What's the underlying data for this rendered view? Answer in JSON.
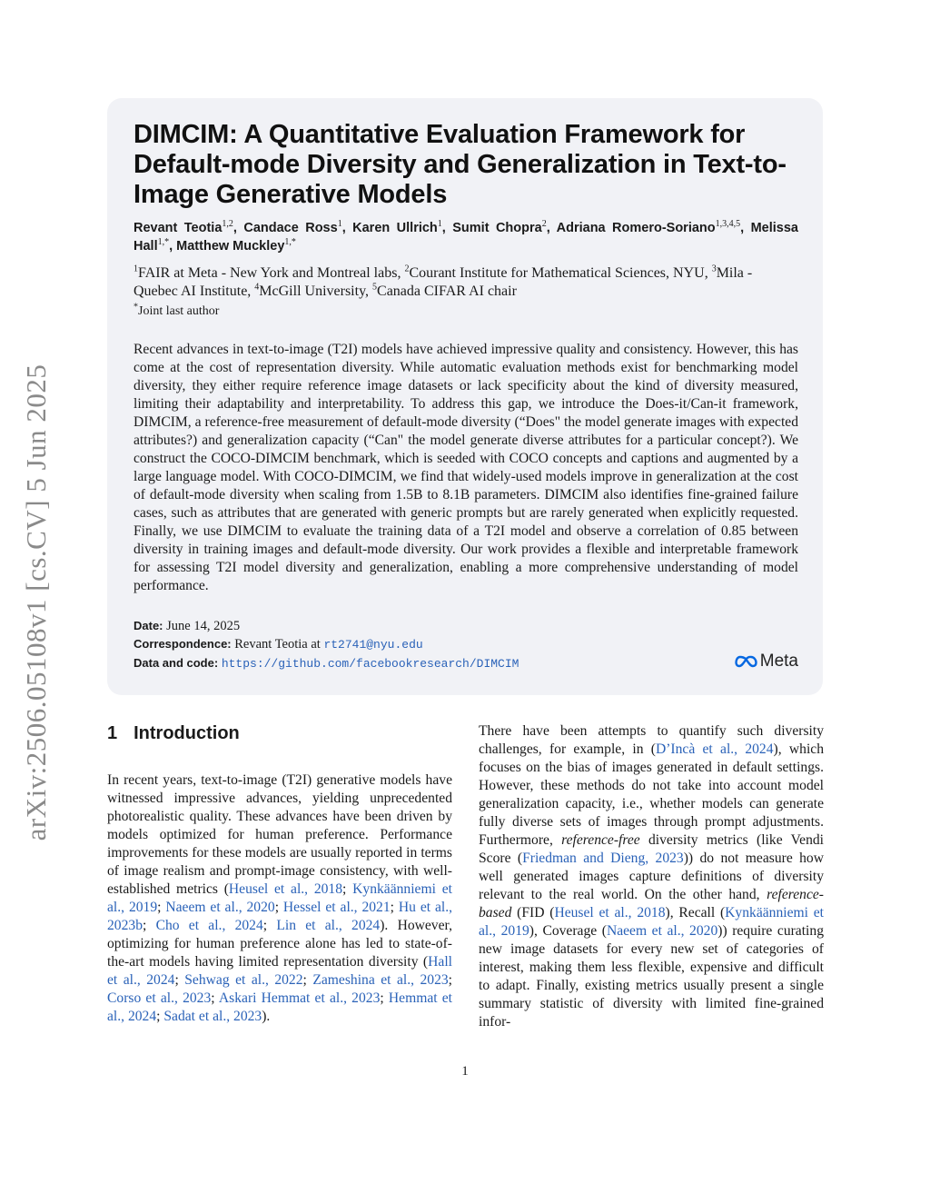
{
  "arxiv_id": "arXiv:2506.05108v1  [cs.CV]  5 Jun 2025",
  "title": "DIMCIM: A Quantitative Evaluation Framework for Default-mode Diversity and Generalization in Text-to-Image Generative Models",
  "authors": [
    {
      "name": "Revant Teotia",
      "sup": "1,2"
    },
    {
      "name": "Candace Ross",
      "sup": "1"
    },
    {
      "name": "Karen Ullrich",
      "sup": "1"
    },
    {
      "name": "Sumit Chopra",
      "sup": "2"
    },
    {
      "name": "Adriana Romero-Soriano",
      "sup": "1,3,4,5"
    },
    {
      "name": "Melissa Hall",
      "sup": "1,*"
    },
    {
      "name": "Matthew Muckley",
      "sup": "1,*"
    }
  ],
  "affiliations": [
    {
      "sup": "1",
      "text": "FAIR at Meta - New York and Montreal labs"
    },
    {
      "sup": "2",
      "text": "Courant Institute for Mathematical Sciences, NYU"
    },
    {
      "sup": "3",
      "text": "Mila - Quebec AI Institute"
    },
    {
      "sup": "4",
      "text": "McGill University"
    },
    {
      "sup": "5",
      "text": "Canada CIFAR AI chair"
    }
  ],
  "joint_note": {
    "sup": "*",
    "text": "Joint last author"
  },
  "abstract": "Recent advances in text-to-image (T2I) models have achieved impressive quality and consistency. However, this has come at the cost of representation diversity. While automatic evaluation methods exist for benchmarking model diversity, they either require reference image datasets or lack specificity about the kind of diversity measured, limiting their adaptability and interpretability. To address this gap, we introduce the Does-it/Can-it framework, DIMCIM, a reference-free measurement of default-mode diversity (“Does\" the model generate images with expected attributes?) and generalization capacity (“Can\" the model generate diverse attributes for a particular concept?). We construct the COCO-DIMCIM benchmark, which is seeded with COCO concepts and captions and augmented by a large language model. With COCO-DIMCIM, we find that widely-used models improve in generalization at the cost of default-mode diversity when scaling from 1.5B to 8.1B parameters. DIMCIM also identifies fine-grained failure cases, such as attributes that are generated with generic prompts but are rarely generated when explicitly requested. Finally, we use DIMCIM to evaluate the training data of a T2I model and observe a correlation of 0.85 between diversity in training images and default-mode diversity. Our work provides a flexible and interpretable framework for assessing T2I model diversity and generalization, enabling a more comprehensive understanding of model performance.",
  "meta": {
    "date_label": "Date:",
    "date": "June 14, 2025",
    "corr_label": "Correspondence:",
    "corr_name": "Revant Teotia at",
    "corr_email": "rt2741@nyu.edu",
    "code_label": "Data and code:",
    "code_url": "https://github.com/facebookresearch/DIMCIM",
    "logo_text": "Meta"
  },
  "section": {
    "number": "1",
    "title": "Introduction"
  },
  "left_col": [
    {
      "t": "In recent years, text-to-image (T2I) generative models have witnessed impressive advances, yielding unprecedented photorealistic quality. These advances have been driven by models optimized for human preference. Performance improvements for these models are usually reported in terms of image realism and prompt-image consistency, with well-established metrics ("
    },
    {
      "c": "Heusel et al., 2018"
    },
    {
      "t": "; "
    },
    {
      "c": "Kynkäänniemi et al., 2019"
    },
    {
      "t": "; "
    },
    {
      "c": "Naeem et al., 2020"
    },
    {
      "t": "; "
    },
    {
      "c": "Hessel et al., 2021"
    },
    {
      "t": "; "
    },
    {
      "c": "Hu et al., 2023b"
    },
    {
      "t": "; "
    },
    {
      "c": "Cho et al., 2024"
    },
    {
      "t": "; "
    },
    {
      "c": "Lin et al., 2024"
    },
    {
      "t": "). However, optimizing for human preference alone has led to state-of-the-art models having limited representation diversity ("
    },
    {
      "c": "Hall et al., 2024"
    },
    {
      "t": "; "
    },
    {
      "c": "Sehwag et al., 2022"
    },
    {
      "t": "; "
    },
    {
      "c": "Zameshina et al., 2023"
    },
    {
      "t": "; "
    },
    {
      "c": "Corso et al., 2023"
    },
    {
      "t": "; "
    },
    {
      "c": "Askari Hemmat et al., 2023"
    },
    {
      "t": "; "
    },
    {
      "c": "Hemmat et al., 2024"
    },
    {
      "t": "; "
    },
    {
      "c": "Sadat et al., 2023"
    },
    {
      "t": ")."
    }
  ],
  "right_col": [
    {
      "t": "There have been attempts to quantify such diversity challenges, for example, in ("
    },
    {
      "c": "D’Incà et al., 2024"
    },
    {
      "t": "), which focuses on the bias of images generated in default settings. However, these methods do not take into account model generalization capacity, i.e., whether models can generate fully diverse sets of images through prompt adjustments. Furthermore, "
    },
    {
      "i": "reference-free"
    },
    {
      "t": " diversity metrics (like Vendi Score ("
    },
    {
      "c": "Friedman and Dieng, 2023"
    },
    {
      "t": ")) do not measure how well generated images capture definitions of diversity relevant to the real world. On the other hand, "
    },
    {
      "i": "reference-based"
    },
    {
      "t": " (FID ("
    },
    {
      "c": "Heusel et al., 2018"
    },
    {
      "t": "), Recall ("
    },
    {
      "c": "Kynkäänniemi et al., 2019"
    },
    {
      "t": "), Coverage ("
    },
    {
      "c": "Naeem et al., 2020"
    },
    {
      "t": ")) require curating new image datasets for every new set of categories of interest, making them less flexible, expensive and difficult to adapt. Finally, existing metrics usually present a single summary statistic of diversity with limited fine-grained infor-"
    }
  ],
  "page_number": "1",
  "colors": {
    "link": "#2a62b8",
    "box_bg": "#f1f2f6",
    "meta_blue": "#0668e1"
  }
}
